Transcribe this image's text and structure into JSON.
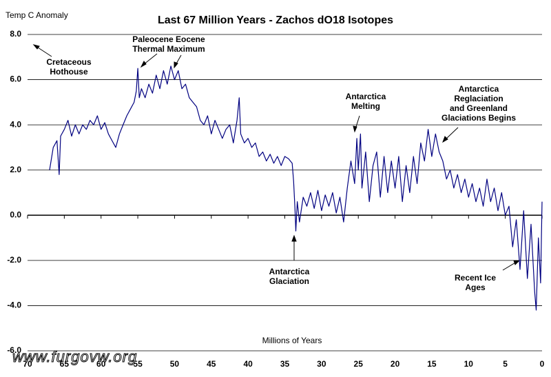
{
  "chart_data": {
    "type": "line",
    "title": "Last 67 Million Years - Zachos dO18 Isotopes",
    "y_label": "Temp C Anomaly",
    "x_label": "Millions of Years",
    "watermark": "www.furgovw.org",
    "annotations": [
      [
        "Cretaceous",
        "Hothouse"
      ],
      [
        "Paleocene Eocene",
        "Thermal Maximum"
      ],
      [
        "Antarctica",
        "Melting"
      ],
      [
        "Antarctica",
        "Reglaciation",
        "and Greenland",
        "Glaciations Begins"
      ],
      [
        "Antarctica",
        "Glaciation"
      ],
      [
        "Recent Ice",
        "Ages"
      ]
    ],
    "xlim": [
      70,
      0
    ],
    "xticks": [
      70,
      65,
      60,
      55,
      50,
      45,
      40,
      35,
      30,
      25,
      20,
      15,
      10,
      5,
      0
    ],
    "ylim": [
      -6,
      8
    ],
    "yticks": [
      {
        "value": 8,
        "label": "8.0"
      },
      {
        "value": 6,
        "label": "6.0"
      },
      {
        "value": 4,
        "label": "4.0"
      },
      {
        "value": 2,
        "label": "2.0"
      },
      {
        "value": 0,
        "label": "0.0"
      },
      {
        "value": -2,
        "label": "-2.0"
      },
      {
        "value": -4,
        "label": "-4.0"
      },
      {
        "value": -6,
        "label": "-6.0"
      }
    ],
    "grid": true,
    "color": "#000080",
    "x": [
      67,
      66.5,
      66,
      65.7,
      65.5,
      65,
      64.5,
      64,
      63.5,
      63,
      62.5,
      62,
      61.5,
      61,
      60.5,
      60,
      59.5,
      59,
      58.5,
      58,
      57.5,
      57,
      56.5,
      56,
      55.5,
      55.2,
      55,
      54.8,
      54.5,
      54,
      53.5,
      53,
      52.5,
      52,
      51.5,
      51,
      50.5,
      50,
      49.5,
      49,
      48.5,
      48,
      47.5,
      47,
      46.5,
      46,
      45.5,
      45,
      44.5,
      44,
      43.5,
      43,
      42.5,
      42,
      41.5,
      41.2,
      41,
      40.5,
      40,
      39.5,
      39,
      38.5,
      38,
      37.5,
      37,
      36.5,
      36,
      35.5,
      35,
      34.5,
      34,
      33.8,
      33.6,
      33.5,
      33.3,
      33,
      32.5,
      32,
      31.5,
      31,
      30.5,
      30,
      29.5,
      29,
      28.5,
      28,
      27.5,
      27,
      26.5,
      26,
      25.5,
      25.2,
      25,
      24.7,
      24.5,
      24,
      23.5,
      23,
      22.5,
      22,
      21.5,
      21,
      20.5,
      20,
      19.5,
      19,
      18.5,
      18,
      17.5,
      17,
      16.5,
      16,
      15.5,
      15,
      14.5,
      14,
      13.5,
      13,
      12.5,
      12,
      11.5,
      11,
      10.5,
      10,
      9.5,
      9,
      8.5,
      8,
      7.5,
      7,
      6.5,
      6,
      5.5,
      5,
      4.5,
      4,
      3.5,
      3,
      2.5,
      2,
      1.5,
      1,
      0.8,
      0.5,
      0.2,
      0
    ],
    "values": [
      2.0,
      3.0,
      3.3,
      1.8,
      3.5,
      3.8,
      4.2,
      3.5,
      4.0,
      3.6,
      4.0,
      3.8,
      4.2,
      4.0,
      4.4,
      3.8,
      4.1,
      3.6,
      3.3,
      3.0,
      3.6,
      4.0,
      4.4,
      4.7,
      5.0,
      5.5,
      6.5,
      5.2,
      5.6,
      5.2,
      5.8,
      5.4,
      6.2,
      5.6,
      6.4,
      5.8,
      6.6,
      6.0,
      6.4,
      5.6,
      5.8,
      5.2,
      5.0,
      4.8,
      4.2,
      4.0,
      4.4,
      3.6,
      4.2,
      3.8,
      3.4,
      3.8,
      4.0,
      3.2,
      4.2,
      5.2,
      3.6,
      3.2,
      3.4,
      3.0,
      3.2,
      2.6,
      2.8,
      2.4,
      2.7,
      2.3,
      2.6,
      2.2,
      2.6,
      2.5,
      2.3,
      1.5,
      0.2,
      -0.7,
      0.6,
      -0.3,
      0.8,
      0.4,
      1.0,
      0.3,
      1.1,
      0.2,
      0.9,
      0.4,
      1.0,
      0.1,
      0.8,
      -0.3,
      1.2,
      2.4,
      1.4,
      3.4,
      2.0,
      3.6,
      1.2,
      2.8,
      0.6,
      2.2,
      2.8,
      0.8,
      2.6,
      1.0,
      2.4,
      1.2,
      2.6,
      0.6,
      2.2,
      1.0,
      2.6,
      1.4,
      3.2,
      2.4,
      3.8,
      2.6,
      3.6,
      2.8,
      2.4,
      1.6,
      2.0,
      1.2,
      1.8,
      1.0,
      1.6,
      0.8,
      1.4,
      0.6,
      1.2,
      0.4,
      1.6,
      0.6,
      1.2,
      0.2,
      1.0,
      0.0,
      0.4,
      -1.4,
      -0.2,
      -2.4,
      0.2,
      -2.8,
      -0.4,
      -3.4,
      -4.2,
      -1.0,
      -3.0,
      0.6
    ]
  }
}
